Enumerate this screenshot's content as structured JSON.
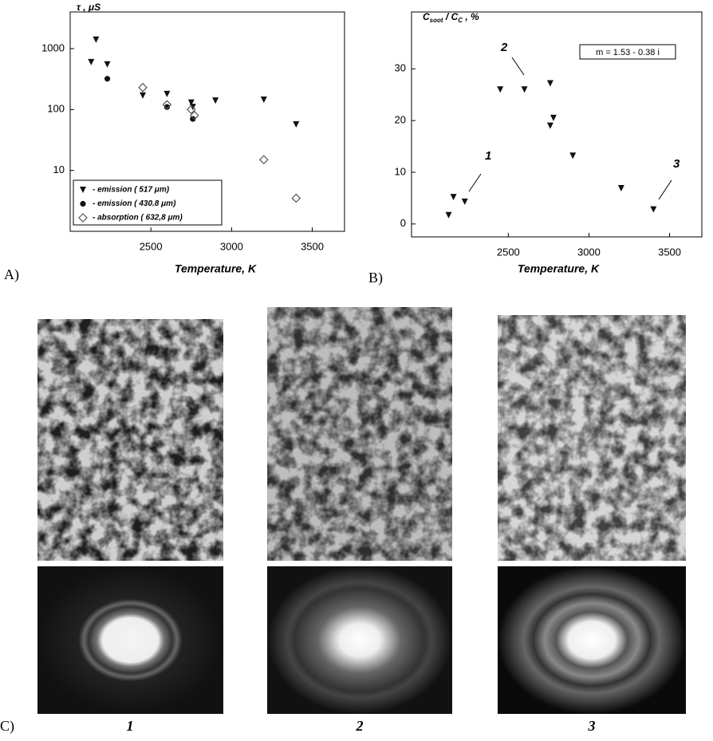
{
  "chart_data": [
    {
      "type": "scatter",
      "ylabel": "τ , μS",
      "xlabel": "Temperature, K",
      "panel": "A)",
      "xlim": [
        2000,
        3700
      ],
      "xticks": [
        2500,
        3000,
        3500
      ],
      "ylim": [
        1,
        4000
      ],
      "yticks": [
        10,
        100,
        1000
      ],
      "log_y": true,
      "legend": "lower-left",
      "series": [
        {
          "name": "- emission ( 517 μm)",
          "marker": "triangle-down",
          "color": "#111111",
          "x": [
            2130,
            2160,
            2230,
            2450,
            2600,
            2750,
            2760,
            2900,
            3200,
            3400
          ],
          "values": [
            600,
            1400,
            550,
            170,
            180,
            130,
            110,
            140,
            145,
            57
          ]
        },
        {
          "name": "- emission ( 430.8 μm)",
          "marker": "circle",
          "color": "#111111",
          "x": [
            2230,
            2600,
            2760
          ],
          "values": [
            320,
            110,
            70
          ]
        },
        {
          "name": "- absorption ( 632,8 μm)",
          "marker": "diamond",
          "color": "#555555",
          "x": [
            2450,
            2600,
            2750,
            2770,
            3200,
            3400
          ],
          "values": [
            230,
            120,
            100,
            80,
            15,
            3.5
          ]
        }
      ]
    },
    {
      "type": "scatter",
      "ylabel": [
        "C",
        "soot",
        " / C",
        "C",
        " , %"
      ],
      "xlabel": "Temperature, K",
      "panel": "B)",
      "xlim": [
        1900,
        3700
      ],
      "xticks": [
        2500,
        3000,
        3500
      ],
      "ylim": [
        -2.5,
        41
      ],
      "yticks": [
        0,
        10,
        20,
        30
      ],
      "annotations": [
        "1",
        "2",
        "3"
      ],
      "box_note": "m = 1.53 - 0.38 i",
      "series": [
        {
          "marker": "triangle-down",
          "color": "#111111",
          "x": [
            2130,
            2160,
            2230,
            2450,
            2600,
            2760,
            2760,
            2780,
            2900,
            3200,
            3400
          ],
          "values": [
            1.7,
            5.2,
            4.3,
            26,
            26,
            27.2,
            19,
            20.5,
            13.2,
            6.9,
            2.8
          ]
        }
      ]
    }
  ],
  "figure": {
    "panel_c": "C)",
    "images": [
      "1",
      "2",
      "3"
    ]
  }
}
